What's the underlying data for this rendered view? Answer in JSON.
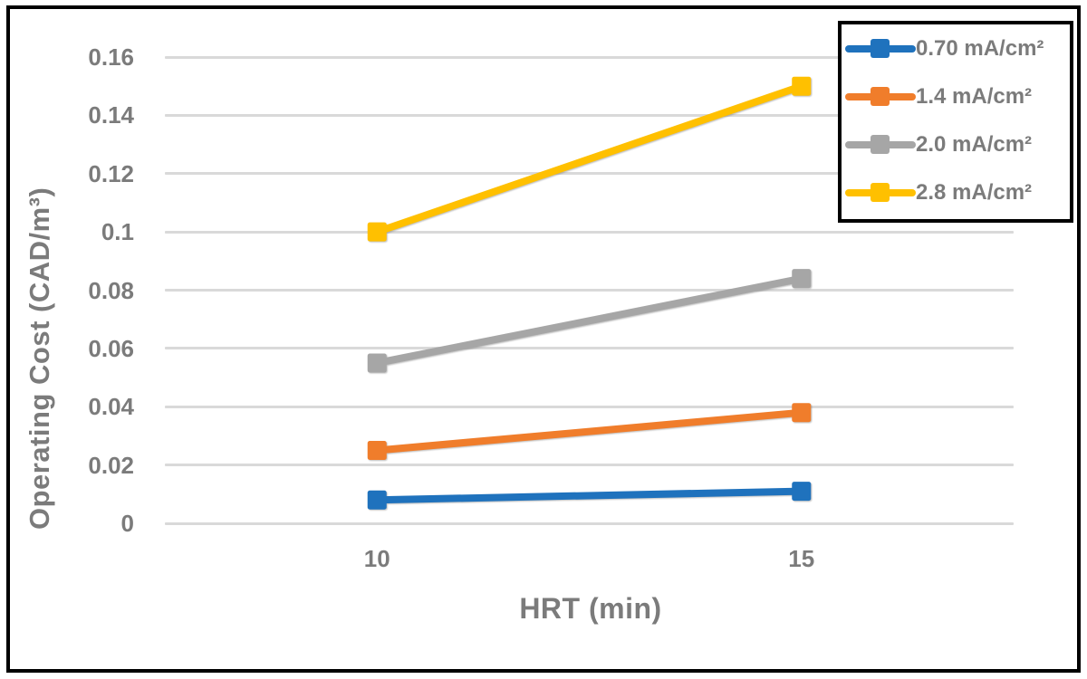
{
  "figure": {
    "background": "#FFFFFF",
    "border_color": "#000000",
    "text_color": "#7B7B7B",
    "gridline_color": "#D9D9D9"
  },
  "chart_data": {
    "type": "line",
    "title": "",
    "xlabel": "HRT (min)",
    "ylabel": "Operating Cost (CAD/m³)",
    "categories": [
      10,
      15
    ],
    "x_tick_labels": [
      "10",
      "15"
    ],
    "y_ticks": [
      0,
      0.02,
      0.04,
      0.06,
      0.08,
      0.1,
      0.12,
      0.14,
      0.16
    ],
    "y_tick_labels": [
      "0",
      "0.02",
      "0.04",
      "0.06",
      "0.08",
      "0.1",
      "0.12",
      "0.14",
      "0.16"
    ],
    "ylim": [
      0,
      0.16
    ],
    "grid": "horizontal",
    "marker": "square",
    "legend_position": "top-right",
    "series": [
      {
        "name": "0.70 mA/cm²",
        "color": "#1F72BD",
        "values": [
          0.008,
          0.011
        ]
      },
      {
        "name": "1.4 mA/cm²",
        "color": "#F07D2B",
        "values": [
          0.025,
          0.038
        ]
      },
      {
        "name": "2.0 mA/cm²",
        "color": "#A6A6A6",
        "values": [
          0.055,
          0.084
        ]
      },
      {
        "name": "2.8 mA/cm²",
        "color": "#FFC000",
        "values": [
          0.1,
          0.15
        ]
      }
    ]
  }
}
